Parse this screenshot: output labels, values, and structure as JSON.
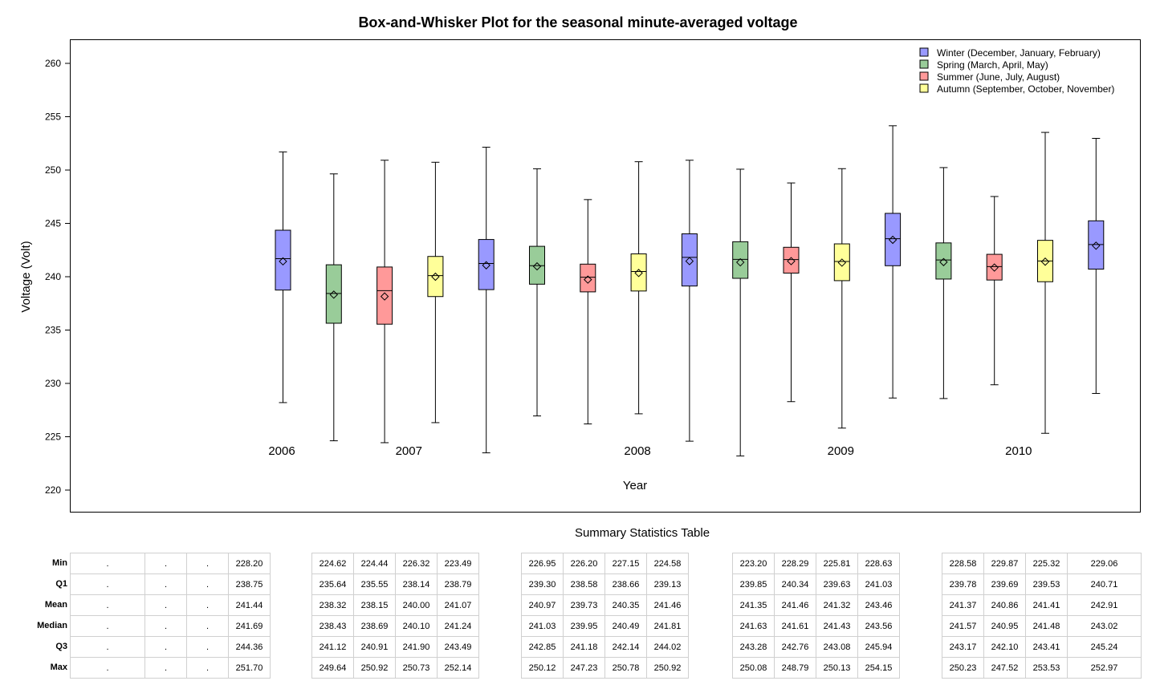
{
  "chart_data": {
    "type": "box",
    "title": "Box-and-Whisker Plot for the seasonal minute-averaged voltage",
    "xlabel": "Year",
    "ylabel": "Voltage (Volt)",
    "ylim": [
      220,
      260
    ],
    "y_ticks": [
      220,
      225,
      230,
      235,
      240,
      245,
      250,
      255,
      260
    ],
    "grid": false,
    "legend_position": "top-right",
    "legend": [
      {
        "season": "winter",
        "label": "Winter (December, January, February)",
        "color": "#9999ff"
      },
      {
        "season": "spring",
        "label": "Spring (March, April, May)",
        "color": "#99cc99"
      },
      {
        "season": "summer",
        "label": "Summer (June, July, August)",
        "color": "#ff9999"
      },
      {
        "season": "autumn",
        "label": "Autumn (September, October, November)",
        "color": "#ffff99"
      }
    ],
    "year_labels": [
      {
        "label": "2006",
        "box_index": 0
      },
      {
        "label": "2007",
        "box_index": 2.5
      },
      {
        "label": "2008",
        "box_index": 7
      },
      {
        "label": "2009",
        "box_index": 11
      },
      {
        "label": "2010",
        "box_index": 14.5
      }
    ],
    "boxes": [
      {
        "season": "winter",
        "min": 228.2,
        "q1": 238.75,
        "mean": 241.44,
        "median": 241.69,
        "q3": 244.36,
        "max": 251.7
      },
      {
        "season": "spring",
        "min": 224.62,
        "q1": 235.64,
        "mean": 238.32,
        "median": 238.43,
        "q3": 241.12,
        "max": 249.64
      },
      {
        "season": "summer",
        "min": 224.44,
        "q1": 235.55,
        "mean": 238.15,
        "median": 238.69,
        "q3": 240.91,
        "max": 250.92
      },
      {
        "season": "autumn",
        "min": 226.32,
        "q1": 238.14,
        "mean": 240.0,
        "median": 240.1,
        "q3": 241.9,
        "max": 250.73
      },
      {
        "season": "winter",
        "min": 223.49,
        "q1": 238.79,
        "mean": 241.07,
        "median": 241.24,
        "q3": 243.49,
        "max": 252.14
      },
      {
        "season": "spring",
        "min": 226.95,
        "q1": 239.3,
        "mean": 240.97,
        "median": 241.03,
        "q3": 242.85,
        "max": 250.12
      },
      {
        "season": "summer",
        "min": 226.2,
        "q1": 238.58,
        "mean": 239.73,
        "median": 239.95,
        "q3": 241.18,
        "max": 247.23
      },
      {
        "season": "autumn",
        "min": 227.15,
        "q1": 238.66,
        "mean": 240.35,
        "median": 240.49,
        "q3": 242.14,
        "max": 250.78
      },
      {
        "season": "winter",
        "min": 224.58,
        "q1": 239.13,
        "mean": 241.46,
        "median": 241.81,
        "q3": 244.02,
        "max": 250.92
      },
      {
        "season": "spring",
        "min": 223.2,
        "q1": 239.85,
        "mean": 241.35,
        "median": 241.63,
        "q3": 243.28,
        "max": 250.08
      },
      {
        "season": "summer",
        "min": 228.29,
        "q1": 240.34,
        "mean": 241.46,
        "median": 241.61,
        "q3": 242.76,
        "max": 248.79
      },
      {
        "season": "autumn",
        "min": 225.81,
        "q1": 239.63,
        "mean": 241.32,
        "median": 241.43,
        "q3": 243.08,
        "max": 250.13
      },
      {
        "season": "winter",
        "min": 228.63,
        "q1": 241.03,
        "mean": 243.46,
        "median": 243.56,
        "q3": 245.94,
        "max": 254.15
      },
      {
        "season": "spring",
        "min": 228.58,
        "q1": 239.78,
        "mean": 241.37,
        "median": 241.57,
        "q3": 243.17,
        "max": 250.23
      },
      {
        "season": "summer",
        "min": 229.87,
        "q1": 239.69,
        "mean": 240.86,
        "median": 240.95,
        "q3": 242.1,
        "max": 247.52
      },
      {
        "season": "autumn",
        "min": 225.32,
        "q1": 239.53,
        "mean": 241.41,
        "median": 241.48,
        "q3": 243.41,
        "max": 253.53
      },
      {
        "season": "winter",
        "min": 229.06,
        "q1": 240.71,
        "mean": 242.91,
        "median": 243.02,
        "q3": 245.24,
        "max": 252.97
      }
    ]
  },
  "summary_table": {
    "title": "Summary Statistics Table",
    "row_labels": [
      "Min",
      "Q1",
      "Mean",
      "Median",
      "Q3",
      "Max"
    ],
    "groups": [
      {
        "columns": [
          [
            ".",
            ".",
            ".",
            ".",
            ".",
            "."
          ],
          [
            ".",
            ".",
            ".",
            ".",
            ".",
            "."
          ],
          [
            ".",
            ".",
            ".",
            ".",
            ".",
            "."
          ],
          [
            "228.20",
            "238.75",
            "241.44",
            "241.69",
            "244.36",
            "251.70"
          ]
        ]
      },
      {
        "columns": [
          [
            "224.62",
            "235.64",
            "238.32",
            "238.43",
            "241.12",
            "249.64"
          ],
          [
            "224.44",
            "235.55",
            "238.15",
            "238.69",
            "240.91",
            "250.92"
          ],
          [
            "226.32",
            "238.14",
            "240.00",
            "240.10",
            "241.90",
            "250.73"
          ],
          [
            "223.49",
            "238.79",
            "241.07",
            "241.24",
            "243.49",
            "252.14"
          ]
        ]
      },
      {
        "columns": [
          [
            "226.95",
            "239.30",
            "240.97",
            "241.03",
            "242.85",
            "250.12"
          ],
          [
            "226.20",
            "238.58",
            "239.73",
            "239.95",
            "241.18",
            "247.23"
          ],
          [
            "227.15",
            "238.66",
            "240.35",
            "240.49",
            "242.14",
            "250.78"
          ],
          [
            "224.58",
            "239.13",
            "241.46",
            "241.81",
            "244.02",
            "250.92"
          ]
        ]
      },
      {
        "columns": [
          [
            "223.20",
            "239.85",
            "241.35",
            "241.63",
            "243.28",
            "250.08"
          ],
          [
            "228.29",
            "240.34",
            "241.46",
            "241.61",
            "242.76",
            "248.79"
          ],
          [
            "225.81",
            "239.63",
            "241.32",
            "241.43",
            "243.08",
            "250.13"
          ],
          [
            "228.63",
            "241.03",
            "243.46",
            "243.56",
            "245.94",
            "254.15"
          ]
        ]
      },
      {
        "columns": [
          [
            "228.58",
            "239.78",
            "241.37",
            "241.57",
            "243.17",
            "250.23"
          ],
          [
            "229.87",
            "239.69",
            "240.86",
            "240.95",
            "242.10",
            "247.52"
          ],
          [
            "225.32",
            "239.53",
            "241.41",
            "241.48",
            "243.41",
            "253.53"
          ],
          [
            "229.06",
            "240.71",
            "242.91",
            "243.02",
            "245.24",
            "252.97"
          ]
        ]
      }
    ]
  }
}
